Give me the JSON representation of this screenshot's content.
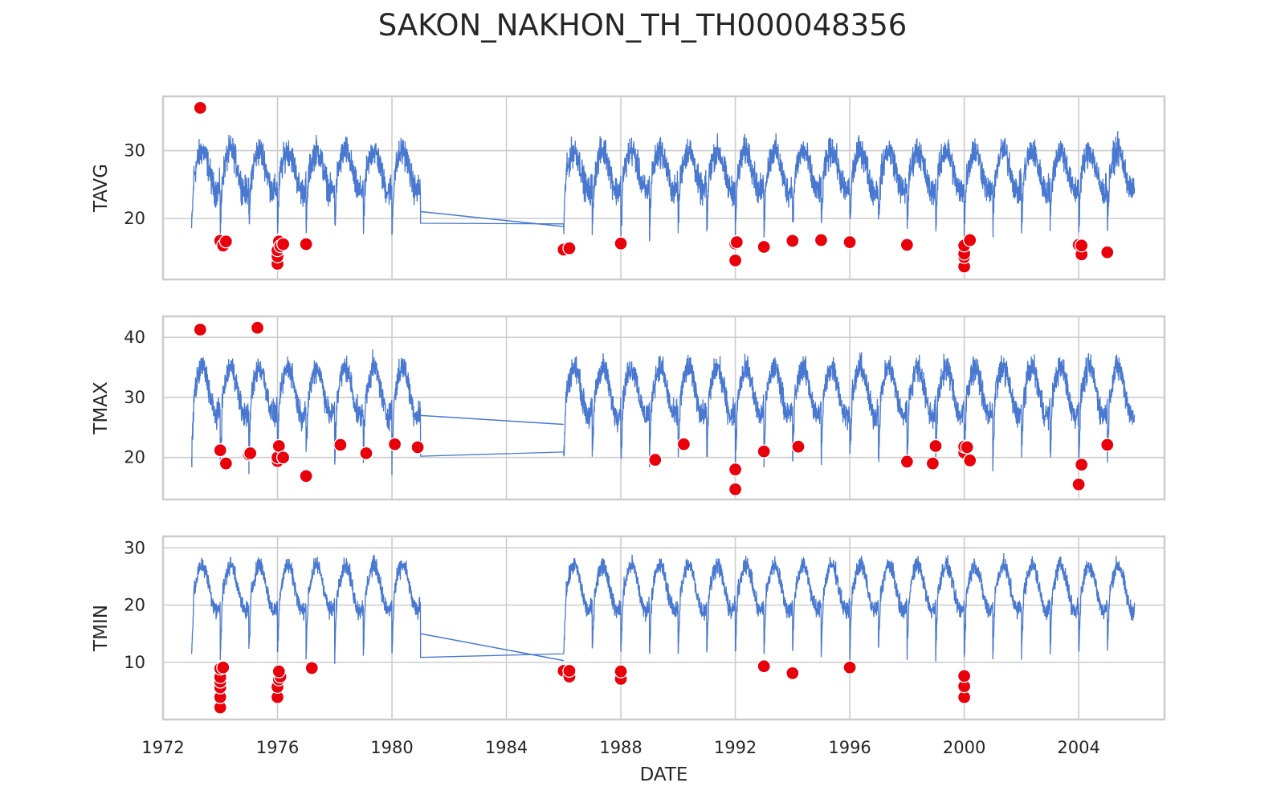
{
  "figure": {
    "title": "SAKON_NAKHON_TH_TH000048356"
  },
  "colors": {
    "line": "#4878d0",
    "outlier": "#e8000b",
    "outlier_edge": "#ffffff",
    "grid": "#cccccc",
    "frame": "#cccccc"
  },
  "chart_data": {
    "type": "line",
    "title": "SAKON_NAKHON_TH_TH000048356",
    "xlabel": "DATE",
    "x_ticks": [
      "1972",
      "1976",
      "1980",
      "1984",
      "1988",
      "1992",
      "1996",
      "2000",
      "2004"
    ],
    "xlim": [
      1972.0,
      2007.0
    ],
    "grid": true,
    "line_color": "#4878d0",
    "outlier_color": "#e8000b",
    "data_coverage": {
      "segments": [
        [
          1973.0,
          1981.0
        ],
        [
          1986.0,
          1998.85
        ],
        [
          1998.85,
          1999.7
        ],
        [
          1999.7,
          2001.1
        ],
        [
          2001.15,
          2005.95
        ]
      ],
      "note_gaps": [
        [
          1981.0,
          1986.0
        ],
        [
          1999.0,
          1999.7
        ]
      ]
    },
    "panels": [
      {
        "name": "TAVG",
        "ylabel": "TAVG",
        "ylim": [
          11,
          38
        ],
        "yticks": [
          20,
          30
        ],
        "seasonal_mean": 27,
        "seasonal_amplitude": 3,
        "gap_line": {
          "from": [
            1981.0,
            21.0
          ],
          "to": [
            1986.0,
            18.8
          ]
        },
        "outliers": [
          [
            1973.3,
            36.3
          ],
          [
            1974.0,
            16.7
          ],
          [
            1974.1,
            16.0
          ],
          [
            1974.2,
            16.6
          ],
          [
            1976.0,
            13.3
          ],
          [
            1976.0,
            14.4
          ],
          [
            1976.0,
            15.3
          ],
          [
            1976.05,
            16.6
          ],
          [
            1976.1,
            15.9
          ],
          [
            1976.2,
            16.2
          ],
          [
            1977.0,
            16.2
          ],
          [
            1986.0,
            15.4
          ],
          [
            1986.2,
            15.6
          ],
          [
            1988.0,
            16.3
          ],
          [
            1992.0,
            13.8
          ],
          [
            1992.0,
            16.3
          ],
          [
            1992.05,
            16.5
          ],
          [
            1993.0,
            15.8
          ],
          [
            1994.0,
            16.7
          ],
          [
            1995.0,
            16.8
          ],
          [
            1996.0,
            16.5
          ],
          [
            1998.0,
            16.1
          ],
          [
            2000.0,
            12.9
          ],
          [
            2000.0,
            14.3
          ],
          [
            2000.0,
            14.8
          ],
          [
            2000.0,
            16.0
          ],
          [
            2000.2,
            16.8
          ],
          [
            2004.0,
            16.1
          ],
          [
            2004.1,
            14.7
          ],
          [
            2004.1,
            16.0
          ],
          [
            2005.0,
            15.0
          ]
        ]
      },
      {
        "name": "TMAX",
        "ylabel": "TMAX",
        "ylim": [
          13,
          43.5
        ],
        "yticks": [
          20,
          30,
          40
        ],
        "seasonal_mean": 31,
        "seasonal_amplitude": 4,
        "gap_line": {
          "from": [
            1981.0,
            27.0
          ],
          "to": [
            1986.0,
            25.5
          ]
        },
        "outliers": [
          [
            1973.3,
            41.3
          ],
          [
            1974.0,
            21.2
          ],
          [
            1974.2,
            19.0
          ],
          [
            1975.0,
            20.5
          ],
          [
            1975.05,
            20.7
          ],
          [
            1975.3,
            41.6
          ],
          [
            1976.0,
            19.4
          ],
          [
            1976.0,
            20.0
          ],
          [
            1976.05,
            21.9
          ],
          [
            1976.2,
            20.0
          ],
          [
            1977.0,
            16.9
          ],
          [
            1978.2,
            22.1
          ],
          [
            1979.1,
            20.7
          ],
          [
            1980.1,
            22.2
          ],
          [
            1980.9,
            21.7
          ],
          [
            1989.2,
            19.6
          ],
          [
            1990.2,
            22.2
          ],
          [
            1992.0,
            14.7
          ],
          [
            1992.0,
            18.0
          ],
          [
            1993.0,
            21.0
          ],
          [
            1994.2,
            21.8
          ],
          [
            1998.0,
            19.3
          ],
          [
            1998.9,
            19.0
          ],
          [
            1999.0,
            21.9
          ],
          [
            2000.0,
            20.8
          ],
          [
            2000.0,
            21.8
          ],
          [
            2000.1,
            21.7
          ],
          [
            2000.2,
            19.5
          ],
          [
            2004.0,
            15.5
          ],
          [
            2004.1,
            18.8
          ],
          [
            2005.0,
            22.1
          ]
        ]
      },
      {
        "name": "TMIN",
        "ylabel": "TMIN",
        "ylim": [
          0,
          32
        ],
        "yticks": [
          10,
          20,
          30
        ],
        "seasonal_mean": 23,
        "seasonal_amplitude": 4,
        "gap_line": {
          "from": [
            1981.0,
            15.0
          ],
          "to": [
            1986.0,
            10.3
          ]
        },
        "outliers": [
          [
            1974.0,
            2.1
          ],
          [
            1974.0,
            3.9
          ],
          [
            1974.0,
            5.6
          ],
          [
            1974.0,
            6.6
          ],
          [
            1974.0,
            7.4
          ],
          [
            1974.0,
            8.9
          ],
          [
            1974.1,
            9.1
          ],
          [
            1976.0,
            3.9
          ],
          [
            1976.0,
            5.7
          ],
          [
            1976.05,
            7.0
          ],
          [
            1976.1,
            7.5
          ],
          [
            1976.05,
            8.4
          ],
          [
            1977.2,
            9.0
          ],
          [
            1986.0,
            8.5
          ],
          [
            1986.2,
            7.5
          ],
          [
            1986.2,
            8.5
          ],
          [
            1988.0,
            7.1
          ],
          [
            1988.0,
            8.4
          ],
          [
            1993.0,
            9.3
          ],
          [
            1994.0,
            8.1
          ],
          [
            1996.0,
            9.1
          ],
          [
            2000.0,
            3.9
          ],
          [
            2000.0,
            5.8
          ],
          [
            2000.0,
            7.6
          ]
        ]
      }
    ]
  }
}
